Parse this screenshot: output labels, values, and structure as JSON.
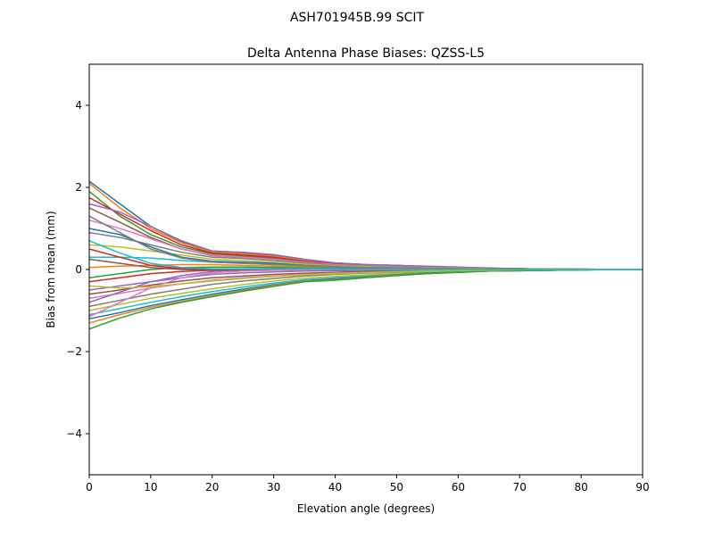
{
  "chart_data": {
    "type": "line",
    "suptitle": "ASH701945B.99   SCIT",
    "title": "Delta Antenna Phase Biases: QZSS-L5",
    "xlabel": "Elevation angle (degrees)",
    "ylabel": "Bias from mean (mm)",
    "xlim": [
      0,
      90
    ],
    "ylim": [
      -5,
      5
    ],
    "xticks": [
      0,
      10,
      20,
      30,
      40,
      50,
      60,
      70,
      80,
      90
    ],
    "yticks": [
      -4,
      -2,
      0,
      2,
      4
    ],
    "ytick_labels": [
      "−4",
      "−2",
      "0",
      "2",
      "4"
    ],
    "grid": false,
    "colors": [
      "#1f77b4",
      "#ff7f0e",
      "#2ca02c",
      "#d62728",
      "#9467bd",
      "#8c564b",
      "#e377c2",
      "#7f7f7f",
      "#bcbd22",
      "#17becf"
    ],
    "x": [
      0,
      5,
      10,
      15,
      20,
      25,
      30,
      35,
      40,
      45,
      50,
      55,
      60,
      65,
      70,
      75,
      80,
      85,
      90
    ],
    "series": [
      {
        "values": [
          2.15,
          1.6,
          1.05,
          0.68,
          0.45,
          0.4,
          0.34,
          0.24,
          0.16,
          0.12,
          0.1,
          0.07,
          0.05,
          0.03,
          0.02,
          0.01,
          0.01,
          0,
          0
        ]
      },
      {
        "values": [
          2.1,
          1.5,
          1.0,
          0.65,
          0.42,
          0.38,
          0.32,
          0.22,
          0.15,
          0.12,
          0.1,
          0.07,
          0.05,
          0.03,
          0.02,
          0.01,
          0.01,
          0,
          0
        ]
      },
      {
        "values": [
          1.9,
          1.3,
          0.85,
          0.55,
          0.38,
          0.33,
          0.28,
          0.2,
          0.13,
          0.1,
          0.08,
          0.06,
          0.04,
          0.03,
          0.02,
          0.01,
          0,
          0,
          0
        ]
      },
      {
        "values": [
          1.75,
          1.35,
          0.95,
          0.6,
          0.4,
          0.35,
          0.3,
          0.2,
          0.14,
          0.1,
          0.08,
          0.06,
          0.04,
          0.03,
          0.02,
          0.01,
          0,
          0,
          0
        ]
      },
      {
        "values": [
          1.6,
          1.4,
          1.05,
          0.7,
          0.45,
          0.42,
          0.36,
          0.25,
          0.16,
          0.12,
          0.1,
          0.08,
          0.06,
          0.04,
          0.02,
          0.01,
          0.01,
          0,
          0
        ]
      },
      {
        "values": [
          1.5,
          1.15,
          0.78,
          0.5,
          0.34,
          0.3,
          0.26,
          0.18,
          0.12,
          0.09,
          0.07,
          0.05,
          0.04,
          0.02,
          0.02,
          0.01,
          0,
          0,
          0
        ]
      },
      {
        "values": [
          1.2,
          1.0,
          0.75,
          0.5,
          0.35,
          0.3,
          0.25,
          0.18,
          0.12,
          0.09,
          0.07,
          0.05,
          0.04,
          0.02,
          0.01,
          0.01,
          0,
          0,
          0
        ]
      },
      {
        "values": [
          0.9,
          0.78,
          0.6,
          0.42,
          0.3,
          0.27,
          0.22,
          0.16,
          0.1,
          0.08,
          0.06,
          0.04,
          0.03,
          0.02,
          0.01,
          0.01,
          0,
          0,
          0
        ]
      },
      {
        "values": [
          0.6,
          0.55,
          0.45,
          0.35,
          0.25,
          0.22,
          0.18,
          0.13,
          0.09,
          0.07,
          0.05,
          0.04,
          0.03,
          0.02,
          0.01,
          0,
          0,
          0,
          0
        ]
      },
      {
        "values": [
          0.3,
          0.3,
          0.28,
          0.22,
          0.18,
          0.15,
          0.12,
          0.09,
          0.06,
          0.05,
          0.04,
          0.03,
          0.02,
          0.01,
          0.01,
          0,
          0,
          0,
          0
        ]
      },
      {
        "values": [
          1.0,
          0.85,
          0.55,
          0.3,
          0.2,
          0.18,
          0.15,
          0.1,
          0.07,
          0.05,
          0.04,
          0.03,
          0.02,
          0.01,
          0.01,
          0,
          0,
          0,
          0
        ]
      },
      {
        "values": [
          0.05,
          0.08,
          0.1,
          0.12,
          0.12,
          0.1,
          0.08,
          0.06,
          0.05,
          0.04,
          0.03,
          0.02,
          0.02,
          0.01,
          0.01,
          0,
          0,
          0,
          0
        ]
      },
      {
        "values": [
          -0.2,
          -0.1,
          0.0,
          0.05,
          0.06,
          0.06,
          0.05,
          0.04,
          0.03,
          0.03,
          0.02,
          0.02,
          0.01,
          0.01,
          0,
          0,
          0,
          0,
          0
        ]
      },
      {
        "values": [
          -0.3,
          -0.2,
          -0.1,
          -0.05,
          -0.02,
          0.0,
          0.01,
          0.01,
          0.01,
          0.01,
          0.01,
          0,
          0,
          0,
          0,
          0,
          0,
          0,
          0
        ]
      },
      {
        "values": [
          -0.5,
          -0.4,
          -0.3,
          -0.2,
          -0.12,
          -0.08,
          -0.06,
          -0.04,
          -0.03,
          -0.02,
          -0.02,
          -0.01,
          -0.01,
          0,
          0,
          0,
          0,
          0,
          0
        ]
      },
      {
        "values": [
          -0.6,
          -0.5,
          -0.38,
          -0.28,
          -0.2,
          -0.16,
          -0.12,
          -0.09,
          -0.07,
          -0.05,
          -0.04,
          -0.03,
          -0.02,
          -0.01,
          -0.01,
          0,
          0,
          0,
          0
        ]
      },
      {
        "values": [
          -0.7,
          -0.58,
          -0.45,
          -0.35,
          -0.26,
          -0.2,
          -0.16,
          -0.12,
          -0.09,
          -0.07,
          -0.05,
          -0.04,
          -0.03,
          -0.02,
          -0.01,
          -0.01,
          0,
          0,
          0
        ]
      },
      {
        "values": [
          -0.9,
          -0.75,
          -0.6,
          -0.48,
          -0.36,
          -0.28,
          -0.22,
          -0.16,
          -0.12,
          -0.09,
          -0.07,
          -0.05,
          -0.04,
          -0.02,
          -0.02,
          -0.01,
          0,
          0,
          0
        ]
      },
      {
        "values": [
          -1.0,
          -0.85,
          -0.7,
          -0.58,
          -0.47,
          -0.37,
          -0.28,
          -0.21,
          -0.17,
          -0.13,
          -0.1,
          -0.07,
          -0.05,
          -0.03,
          -0.02,
          -0.01,
          -0.01,
          0,
          0
        ]
      },
      {
        "values": [
          -1.1,
          -0.95,
          -0.8,
          -0.66,
          -0.54,
          -0.43,
          -0.33,
          -0.25,
          -0.2,
          -0.16,
          -0.12,
          -0.08,
          -0.06,
          -0.04,
          -0.03,
          -0.02,
          -0.01,
          0,
          0
        ]
      },
      {
        "values": [
          -1.2,
          -1.05,
          -0.88,
          -0.74,
          -0.6,
          -0.48,
          -0.37,
          -0.28,
          -0.23,
          -0.18,
          -0.13,
          -0.09,
          -0.06,
          -0.04,
          -0.03,
          -0.02,
          -0.01,
          0,
          0
        ]
      },
      {
        "values": [
          -1.3,
          -1.1,
          -0.92,
          -0.78,
          -0.64,
          -0.51,
          -0.39,
          -0.29,
          -0.25,
          -0.19,
          -0.14,
          -0.1,
          -0.07,
          -0.04,
          -0.03,
          -0.02,
          -0.01,
          0,
          0
        ]
      },
      {
        "values": [
          -1.45,
          -1.18,
          -0.96,
          -0.8,
          -0.66,
          -0.53,
          -0.41,
          -0.3,
          -0.26,
          -0.2,
          -0.15,
          -0.1,
          -0.07,
          -0.04,
          -0.03,
          -0.02,
          -0.01,
          0,
          0
        ]
      },
      {
        "values": [
          0.5,
          0.3,
          0.1,
          0.02,
          0.0,
          0.0,
          0.0,
          0.0,
          0.0,
          0,
          0,
          0,
          0,
          0,
          0,
          0,
          0,
          0,
          0
        ]
      },
      {
        "values": [
          -0.8,
          -0.55,
          -0.3,
          -0.15,
          -0.05,
          0.0,
          0.02,
          0.02,
          0.02,
          0.01,
          0.01,
          0,
          0,
          0,
          0,
          0,
          0,
          0,
          0
        ]
      },
      {
        "values": [
          0.25,
          0.15,
          0.05,
          0.0,
          -0.02,
          -0.02,
          -0.02,
          -0.01,
          -0.01,
          0,
          0,
          0,
          0,
          0,
          0,
          0,
          0,
          0,
          0
        ]
      },
      {
        "values": [
          -1.15,
          -0.8,
          -0.45,
          -0.2,
          -0.08,
          -0.04,
          -0.02,
          -0.01,
          0,
          0,
          0,
          0,
          0,
          0,
          0,
          0,
          0,
          0,
          0
        ]
      },
      {
        "values": [
          1.3,
          0.9,
          0.5,
          0.28,
          0.18,
          0.15,
          0.12,
          0.09,
          0.06,
          0.05,
          0.04,
          0.03,
          0.02,
          0.01,
          0.01,
          0,
          0,
          0,
          0
        ]
      },
      {
        "values": [
          -0.4,
          -0.45,
          -0.42,
          -0.35,
          -0.28,
          -0.22,
          -0.17,
          -0.13,
          -0.1,
          -0.08,
          -0.06,
          -0.04,
          -0.03,
          -0.02,
          -0.01,
          0,
          0,
          0,
          0
        ]
      },
      {
        "values": [
          0.7,
          0.4,
          0.15,
          0.05,
          0.02,
          0.02,
          0.02,
          0.01,
          0.01,
          0,
          0,
          0,
          0,
          0,
          0,
          0,
          0,
          0,
          0
        ]
      }
    ]
  }
}
